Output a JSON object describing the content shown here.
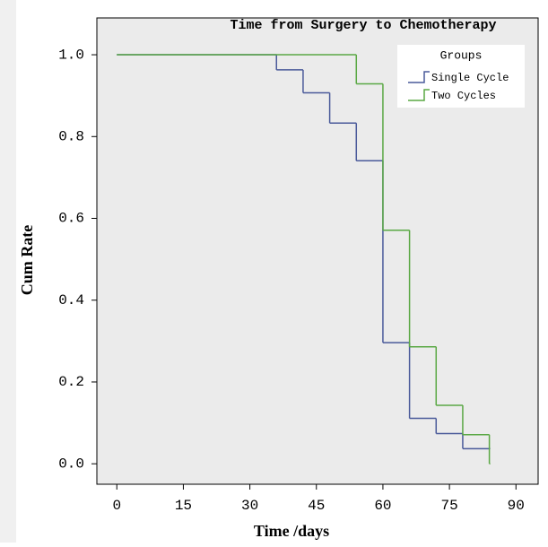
{
  "chart_data": {
    "type": "step",
    "title": "Time from Surgery to Chemotherapy",
    "x_label": "Time /days",
    "y_label": "Cum Rate",
    "legend_title": "Groups",
    "legend": "upper right",
    "xlim": [
      -4.5,
      95
    ],
    "ylim": [
      -0.05,
      1.09
    ],
    "xticks": [
      0,
      15,
      30,
      45,
      60,
      75,
      90
    ],
    "yticks": [
      {
        "value": 0,
        "label": "0.0"
      },
      0.2,
      0.4,
      0.6,
      0.8,
      {
        "value": 1,
        "label": "1.0"
      }
    ],
    "series": [
      {
        "name": "Single Cycle",
        "color": "#4a5a9a",
        "x": [
          0,
          36,
          42,
          48,
          54,
          60,
          66,
          72,
          78,
          84
        ],
        "values": [
          1,
          0.963,
          0.907,
          0.833,
          0.741,
          0.296,
          0.111,
          0.074,
          0.037,
          0.037
        ]
      },
      {
        "name": "Two Cycles",
        "color": "#5aa844",
        "x": [
          0,
          54,
          60,
          66,
          72,
          78,
          84
        ],
        "values": [
          1,
          0.929,
          0.571,
          0.286,
          0.143,
          0.071,
          0
        ]
      }
    ]
  }
}
